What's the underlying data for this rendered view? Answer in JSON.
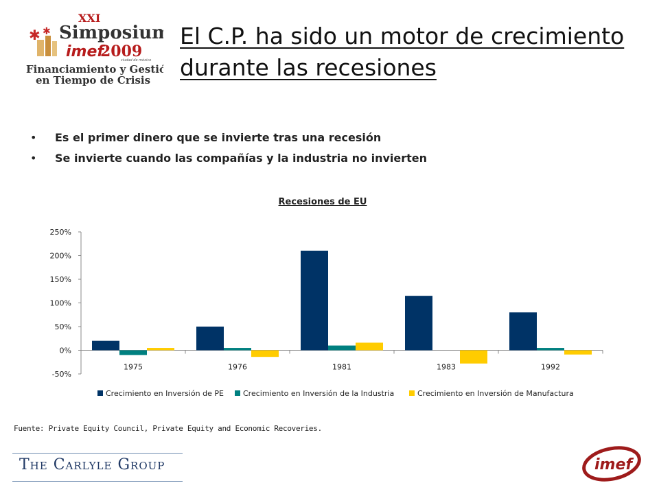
{
  "logo": {
    "numeral": "XXI",
    "event": "Simposium",
    "brand": "imef",
    "year": "2009",
    "city": "ciudad de méxico",
    "line1": "Financiamiento y Gestión",
    "line2": "en Tiempo de Crisis"
  },
  "slide": {
    "title": "El C.P. ha sido un motor de crecimiento durante las recesiones",
    "bullets": [
      "Es el primer dinero que se invierte tras una recesión",
      "Se invierte cuando las compañías y la industria no invierten"
    ],
    "source": "Fuente: Private Equity Council, Private Equity and Economic Recoveries."
  },
  "footer": {
    "carlyle": "The Carlyle Group",
    "imef_logo": "imef"
  },
  "chart_data": {
    "type": "bar",
    "title": "Recesiones de EU",
    "categories": [
      "1975",
      "1976",
      "1981",
      "1983",
      "1992"
    ],
    "series": [
      {
        "name": "Crecimiento en Inversión de PE",
        "color": "#003366",
        "values": [
          20,
          50,
          210,
          115,
          80
        ]
      },
      {
        "name": "Crecimiento en Inversión de la Industria",
        "color": "#008080",
        "values": [
          -10,
          5,
          10,
          0,
          5
        ]
      },
      {
        "name": "Crecimiento en Inversión de Manufactura",
        "color": "#FFCC00",
        "values": [
          5,
          -14,
          16,
          -28,
          -9
        ]
      }
    ],
    "yticks": [
      "-50%",
      "0%",
      "50%",
      "100%",
      "150%",
      "200%",
      "250%"
    ],
    "ylim": [
      -50,
      250
    ],
    "legend": "bottom",
    "grid": false
  }
}
